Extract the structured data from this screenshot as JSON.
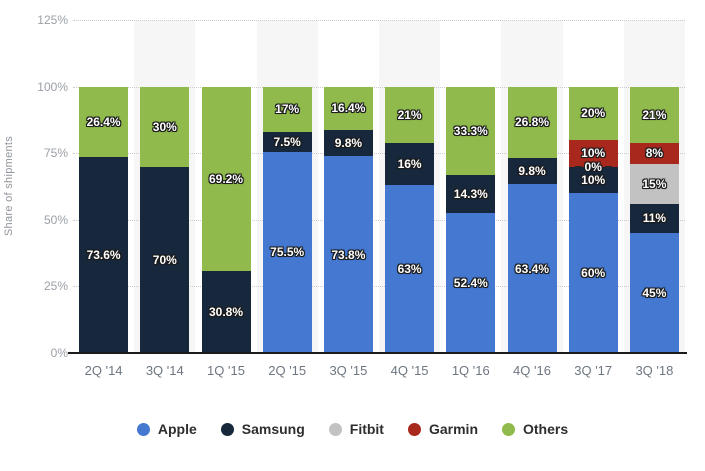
{
  "chart_data": {
    "type": "bar",
    "stacked": true,
    "title": "",
    "xlabel": "",
    "ylabel": "Share of shipments",
    "ylim": [
      0,
      125
    ],
    "grid": "dotted-horizontal",
    "legend_position": "bottom-center",
    "categories": [
      "2Q '14",
      "3Q '14",
      "1Q '15",
      "2Q '15",
      "3Q '15",
      "4Q '15",
      "1Q '16",
      "4Q '16",
      "3Q '17",
      "3Q '18"
    ],
    "yticks": [
      {
        "value": 0,
        "label": "0%"
      },
      {
        "value": 25,
        "label": "25%"
      },
      {
        "value": 50,
        "label": "50%"
      },
      {
        "value": 75,
        "label": "75%"
      },
      {
        "value": 100,
        "label": "100%"
      },
      {
        "value": 125,
        "label": "125%"
      }
    ],
    "band_columns": [
      1,
      3,
      5,
      7,
      9
    ],
    "band_color": "#f6f6f6",
    "axis_line_color": "#1b1b1b",
    "series": [
      {
        "name": "Apple",
        "color": "#4478d1",
        "values": [
          null,
          null,
          null,
          75.5,
          73.8,
          63,
          52.4,
          63.4,
          60,
          45
        ],
        "labels": [
          null,
          null,
          null,
          "75.5%",
          "73.8%",
          "63%",
          "52.4%",
          "63.4%",
          "60%",
          "45%"
        ]
      },
      {
        "name": "Samsung",
        "color": "#17283d",
        "values": [
          73.6,
          70,
          30.8,
          7.5,
          9.8,
          16,
          14.3,
          9.8,
          10,
          11
        ],
        "labels": [
          "73.6%",
          "70%",
          "30.8%",
          "7.5%",
          "9.8%",
          "16%",
          "14.3%",
          "9.8%",
          "10%",
          "11%"
        ]
      },
      {
        "name": "Fitbit",
        "color": "#c2c2c2",
        "values": [
          null,
          null,
          null,
          null,
          null,
          null,
          null,
          null,
          0,
          15
        ],
        "labels": [
          null,
          null,
          null,
          null,
          null,
          null,
          null,
          null,
          "0%",
          "15%"
        ]
      },
      {
        "name": "Garmin",
        "color": "#a8281d",
        "values": [
          null,
          null,
          null,
          null,
          null,
          null,
          null,
          null,
          10,
          8
        ],
        "labels": [
          null,
          null,
          null,
          null,
          null,
          null,
          null,
          null,
          "10%",
          "8%"
        ]
      },
      {
        "name": "Others",
        "color": "#90bb4c",
        "values": [
          26.4,
          30,
          69.2,
          17,
          16.4,
          21,
          33.3,
          26.8,
          20,
          21
        ],
        "labels": [
          "26.4%",
          "30%",
          "69.2%",
          "17%",
          "16.4%",
          "21%",
          "33.3%",
          "26.8%",
          "20%",
          "21%"
        ]
      }
    ]
  }
}
